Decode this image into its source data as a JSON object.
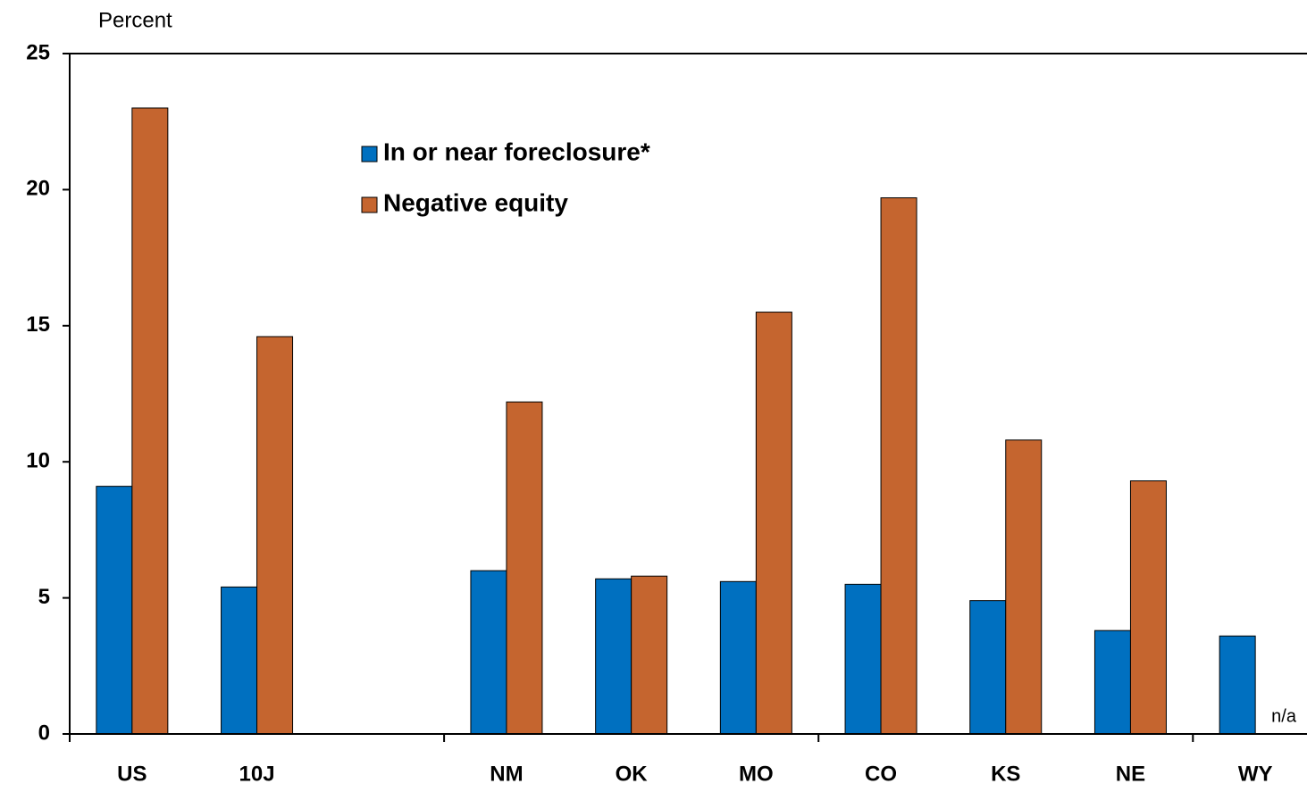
{
  "chart_data": {
    "type": "bar",
    "y_label": "Percent",
    "categories": [
      "US",
      "10J",
      null,
      "NM",
      "OK",
      "MO",
      "CO",
      "KS",
      "NE",
      "WY"
    ],
    "series": [
      {
        "name": "In or near foreclosure*",
        "color": "#0070c0",
        "values": [
          9.1,
          5.4,
          null,
          6.0,
          5.7,
          5.6,
          5.5,
          4.9,
          3.8,
          3.6
        ]
      },
      {
        "name": "Negative equity",
        "color": "#c5652f",
        "values": [
          23.0,
          14.6,
          null,
          12.2,
          5.8,
          15.5,
          19.7,
          10.8,
          9.3,
          null
        ]
      }
    ],
    "annotation": "n/a",
    "ylim": [
      0,
      25
    ],
    "yticks": [
      0,
      5,
      10,
      15,
      20,
      25
    ],
    "grid": false,
    "legend": "top"
  }
}
